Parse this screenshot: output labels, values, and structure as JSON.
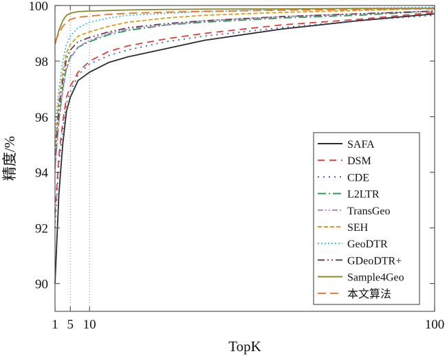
{
  "chart_data": {
    "type": "line",
    "title": "",
    "xlabel": "TopK",
    "ylabel": "精度/%",
    "xlim": [
      1,
      100
    ],
    "ylim": [
      89,
      100
    ],
    "xticks": [
      1,
      5,
      10,
      100
    ],
    "yticks": [
      90,
      92,
      94,
      96,
      98,
      100
    ],
    "reference_lines_x": [
      5,
      10
    ],
    "legend_position": "lower-right",
    "series": [
      {
        "name": "SAFA",
        "color": "#2b2b2b",
        "dash": "solid",
        "x": [
          1,
          2,
          3,
          4,
          5,
          7,
          10,
          15,
          20,
          30,
          40,
          60,
          80,
          100
        ],
        "y": [
          90.0,
          93.2,
          95.0,
          96.2,
          96.7,
          97.3,
          97.6,
          97.95,
          98.15,
          98.45,
          98.75,
          99.15,
          99.45,
          99.7
        ]
      },
      {
        "name": "DSM",
        "color": "#e03c3c",
        "dash": "10,7",
        "x": [
          1,
          2,
          3,
          4,
          5,
          7,
          10,
          15,
          20,
          30,
          40,
          60,
          80,
          100
        ],
        "y": [
          92.5,
          94.6,
          95.8,
          96.7,
          97.1,
          97.6,
          98.0,
          98.35,
          98.55,
          98.8,
          99.0,
          99.3,
          99.5,
          99.75
        ]
      },
      {
        "name": "CDE",
        "color": "#2f5fb0",
        "dash": "2,6",
        "x": [
          1,
          2,
          3,
          4,
          5,
          7,
          10,
          15,
          20,
          30,
          40,
          60,
          80,
          100
        ],
        "y": [
          92.0,
          94.3,
          95.5,
          96.5,
          96.9,
          97.5,
          97.9,
          98.2,
          98.4,
          98.7,
          98.9,
          99.2,
          99.45,
          99.65
        ]
      },
      {
        "name": "L2LTR",
        "color": "#2e9a55",
        "dash": "12,4,2,4",
        "x": [
          1,
          2,
          3,
          4,
          5,
          7,
          10,
          15,
          20,
          30,
          40,
          60,
          80,
          100
        ],
        "y": [
          94.2,
          95.9,
          97.0,
          97.8,
          98.15,
          98.5,
          98.7,
          98.95,
          99.1,
          99.3,
          99.4,
          99.55,
          99.65,
          99.8
        ]
      },
      {
        "name": "TransGeo",
        "color": "#a58cc8",
        "dash": "8,3,2,3,2,3",
        "x": [
          1,
          2,
          3,
          4,
          5,
          7,
          10,
          15,
          20,
          30,
          40,
          60,
          80,
          100
        ],
        "y": [
          94.1,
          95.8,
          96.9,
          97.7,
          98.1,
          98.5,
          98.75,
          99.0,
          99.15,
          99.3,
          99.45,
          99.6,
          99.7,
          99.8
        ]
      },
      {
        "name": "SEH",
        "color": "#d4a017",
        "dash": "6,3",
        "x": [
          1,
          2,
          3,
          4,
          5,
          7,
          10,
          15,
          20,
          30,
          40,
          60,
          80,
          100
        ],
        "y": [
          95.0,
          96.6,
          97.6,
          98.3,
          98.6,
          98.9,
          99.05,
          99.25,
          99.4,
          99.55,
          99.65,
          99.75,
          99.82,
          99.9
        ]
      },
      {
        "name": "GeoDTR",
        "color": "#3bb8e0",
        "dash": "2,3",
        "x": [
          1,
          2,
          3,
          4,
          5,
          7,
          10,
          15,
          20,
          30,
          40,
          60,
          80,
          100
        ],
        "y": [
          95.6,
          97.0,
          98.0,
          98.6,
          98.9,
          99.2,
          99.4,
          99.55,
          99.65,
          99.72,
          99.78,
          99.85,
          99.9,
          99.93
        ]
      },
      {
        "name": "GDeoDTR+",
        "color": "#6a3d5a",
        "dash": "10,4,2,4,2,4",
        "x": [
          1,
          2,
          3,
          4,
          5,
          7,
          10,
          15,
          20,
          30,
          40,
          60,
          80,
          100
        ],
        "y": [
          94.6,
          96.3,
          97.3,
          98.1,
          98.4,
          98.7,
          98.85,
          99.05,
          99.2,
          99.35,
          99.45,
          99.6,
          99.7,
          99.8
        ]
      },
      {
        "name": "Sample4Geo",
        "color": "#8a8a2a",
        "dash": "solid",
        "x": [
          1,
          2,
          3,
          4,
          5,
          7,
          10,
          15,
          20,
          30,
          40,
          60,
          80,
          100
        ],
        "y": [
          98.6,
          99.1,
          99.45,
          99.65,
          99.72,
          99.78,
          99.8,
          99.82,
          99.84,
          99.86,
          99.87,
          99.88,
          99.89,
          99.9
        ]
      },
      {
        "name": "本文算法",
        "color": "#e8742a",
        "dash": "12,6",
        "x": [
          1,
          2,
          3,
          4,
          5,
          7,
          10,
          15,
          20,
          30,
          40,
          60,
          80,
          100
        ],
        "y": [
          98.7,
          99.0,
          99.25,
          99.4,
          99.5,
          99.58,
          99.62,
          99.68,
          99.72,
          99.76,
          99.79,
          99.83,
          99.86,
          99.88
        ]
      }
    ]
  }
}
